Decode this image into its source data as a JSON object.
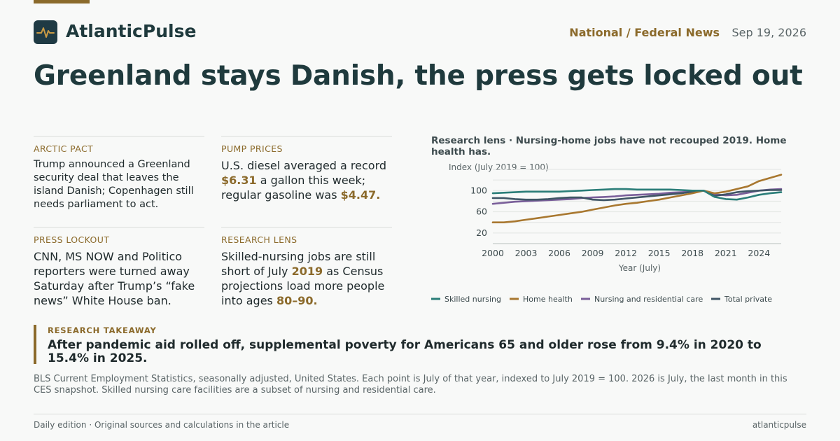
{
  "brand": {
    "name": "AtlanticPulse",
    "section": "National / Federal News",
    "date": "Sep 19, 2026",
    "logo_icon": "pulse-icon",
    "accent_color": "#8b6a2b"
  },
  "headline": "Greenland stays Danish, the press gets locked out",
  "cards": [
    {
      "label": "ARCTIC PACT",
      "text": "Trump announced a Greenland security deal that leaves the island Danish; Copenhagen still needs parliament to act."
    },
    {
      "label": "PUMP PRICES",
      "t1": "U.S. diesel averaged a record ",
      "h1": "$6.31",
      "t2": " a gallon this week; regular gasoline was ",
      "h2": "$4.47."
    },
    {
      "label": "PRESS LOCKOUT",
      "text": "CNN, MS NOW and Politico reporters were turned away Saturday after Trump’s “fake news” White House ban."
    },
    {
      "label": "RESEARCH LENS",
      "t1": "Skilled-nursing jobs are still short of July ",
      "h1": "2019",
      "t2": " as Census projections load more people into ages ",
      "h2": "80–90."
    }
  ],
  "chart_data": {
    "type": "line",
    "title": "Research lens · Nursing-home jobs have not recouped 2019. Home health has.",
    "ylabel": "Index (July 2019 = 100)",
    "xlabel": "Year (July)",
    "x": [
      2000,
      2001,
      2002,
      2003,
      2004,
      2005,
      2006,
      2007,
      2008,
      2009,
      2010,
      2011,
      2012,
      2013,
      2014,
      2015,
      2016,
      2017,
      2018,
      2019,
      2020,
      2021,
      2022,
      2023,
      2024,
      2025,
      2026
    ],
    "xticks": [
      2000,
      2003,
      2006,
      2009,
      2012,
      2015,
      2018,
      2021,
      2024
    ],
    "yticks": [
      20,
      60,
      100
    ],
    "xlim": [
      2000,
      2026
    ],
    "ylim": [
      0,
      140
    ],
    "grid": true,
    "legend_position": "bottom",
    "series": [
      {
        "name": "Skilled nursing",
        "color": "#2a7d78",
        "values": [
          95,
          96,
          97,
          98,
          98,
          98,
          98,
          99,
          100,
          101,
          102,
          103,
          103,
          102,
          102,
          102,
          102,
          101,
          100,
          100,
          88,
          84,
          83,
          87,
          92,
          95,
          97
        ]
      },
      {
        "name": "Home health",
        "color": "#a8772f",
        "values": [
          40,
          40,
          42,
          45,
          48,
          51,
          54,
          57,
          60,
          64,
          68,
          72,
          75,
          77,
          80,
          83,
          87,
          91,
          95,
          100,
          95,
          98,
          103,
          108,
          118,
          124,
          130
        ]
      },
      {
        "name": "Nursing and residential care",
        "color": "#7a5f9a",
        "values": [
          75,
          77,
          79,
          80,
          81,
          82,
          83,
          84,
          86,
          87,
          88,
          89,
          91,
          92,
          93,
          94,
          96,
          97,
          98,
          100,
          93,
          91,
          92,
          96,
          100,
          102,
          103
        ]
      },
      {
        "name": "Total private",
        "color": "#3f5565",
        "values": [
          86,
          86,
          84,
          83,
          83,
          84,
          86,
          87,
          87,
          83,
          82,
          83,
          85,
          87,
          89,
          91,
          93,
          95,
          98,
          100,
          90,
          93,
          97,
          99,
          100,
          101,
          101
        ]
      }
    ]
  },
  "takeaway": {
    "label": "RESEARCH TAKEAWAY",
    "text": "After pandemic aid rolled off, supplemental poverty for Americans 65 and older rose from 9.4% in 2020 to 15.4% in 2025."
  },
  "note": "BLS Current Employment Statistics, seasonally adjusted, United States. Each point is July of that year, indexed to July 2019 = 100. 2026 is July, the last month in this CES snapshot. Skilled nursing care facilities are a subset of nursing and residential care.",
  "footer": {
    "left": "Daily edition · Original sources and calculations in the article",
    "right": "atlanticpulse"
  }
}
